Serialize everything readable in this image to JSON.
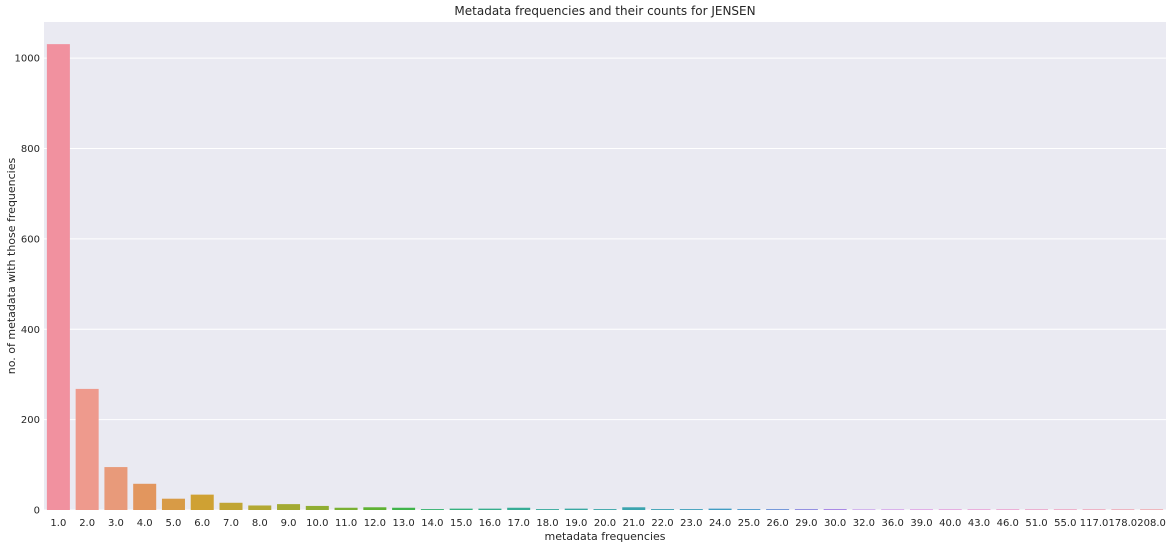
{
  "chart_data": {
    "type": "bar",
    "title": "Metadata frequencies and their counts for JENSEN",
    "xlabel": "metadata frequencies",
    "ylabel": "no. of metadata with those frequencies",
    "categories": [
      "1.0",
      "2.0",
      "3.0",
      "4.0",
      "5.0",
      "6.0",
      "7.0",
      "8.0",
      "9.0",
      "10.0",
      "11.0",
      "12.0",
      "13.0",
      "14.0",
      "15.0",
      "16.0",
      "17.0",
      "18.0",
      "19.0",
      "20.0",
      "21.0",
      "22.0",
      "23.0",
      "24.0",
      "25.0",
      "26.0",
      "29.0",
      "30.0",
      "32.0",
      "36.0",
      "39.0",
      "40.0",
      "43.0",
      "46.0",
      "51.0",
      "55.0",
      "117.0",
      "178.0",
      "208.0"
    ],
    "values": [
      1031,
      268,
      95,
      58,
      25,
      34,
      16,
      10,
      13,
      9,
      5,
      6,
      5,
      2,
      3,
      3,
      5,
      2,
      3,
      2,
      6,
      2,
      2,
      3,
      2,
      2,
      2,
      2,
      1,
      1,
      1,
      1,
      1,
      1,
      1,
      1,
      1,
      1,
      1
    ],
    "ylim": [
      0,
      1080
    ],
    "yticks": [
      0,
      200,
      400,
      600,
      800,
      1000
    ],
    "grid": true,
    "background": "#eaeaf2",
    "grid_color": "#ffffff",
    "colors": [
      "#f1919f",
      "#ee9a8d",
      "#e89a7a",
      "#e2965e",
      "#d89b46",
      "#cfa133",
      "#c1a533",
      "#b3a833",
      "#a3aa33",
      "#90ad33",
      "#7ab033",
      "#5fb233",
      "#40b44b",
      "#34b26e",
      "#35b17f",
      "#36ae8c",
      "#37ac95",
      "#38aa9c",
      "#39a8a2",
      "#3aa6a8",
      "#3ba4ae",
      "#3ca2b4",
      "#3ea0bb",
      "#419dc3",
      "#4c98cc",
      "#6b91d7",
      "#8b88e0",
      "#a37fe5",
      "#b576e7",
      "#c66de5",
      "#d669dc",
      "#e065cf",
      "#e766c2",
      "#eb68b5",
      "#ee6aa8",
      "#f06e9c",
      "#f17190",
      "#f27486",
      "#f3787e"
    ]
  }
}
